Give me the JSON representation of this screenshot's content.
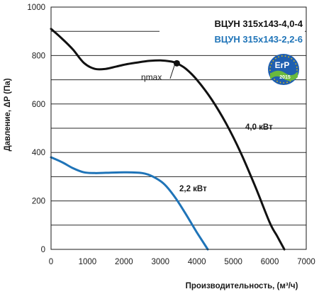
{
  "chart_data": {
    "type": "line",
    "xlabel": "Производительность, (м³/ч)",
    "ylabel": "Давление, ΔP (Па)",
    "xlim": [
      0,
      7000
    ],
    "ylim": [
      0,
      1000
    ],
    "x_ticks": [
      "0",
      "1000",
      "2000",
      "3000",
      "4000",
      "5000",
      "6000",
      "7000"
    ],
    "y_ticks": [
      "0",
      "200",
      "400",
      "600",
      "800",
      "1000"
    ],
    "grid": "horizontal",
    "legend_position": "top-right",
    "series": [
      {
        "name": "ВЦУН 315х143-4,0-4",
        "color": "#111111",
        "label": "4,0 кВт",
        "x": [
          0,
          300,
          600,
          900,
          1200,
          1500,
          1800,
          2100,
          2400,
          2700,
          3000,
          3300,
          3450,
          3700,
          4000,
          4400,
          4800,
          5200,
          5600,
          6000,
          6200,
          6400
        ],
        "y": [
          910,
          870,
          825,
          770,
          745,
          745,
          755,
          765,
          772,
          778,
          780,
          775,
          768,
          745,
          700,
          620,
          520,
          400,
          260,
          110,
          55,
          0
        ]
      },
      {
        "name": "ВЦУН 315х143-2,2-6",
        "color": "#1f74b8",
        "label": "2,2 кВт",
        "x": [
          0,
          300,
          600,
          900,
          1200,
          1500,
          2000,
          2500,
          2800,
          3100,
          3400,
          3700,
          4000,
          4300
        ],
        "y": [
          380,
          360,
          335,
          318,
          315,
          316,
          318,
          315,
          300,
          270,
          215,
          145,
          70,
          0
        ]
      }
    ],
    "annotations": [
      {
        "text": "ηmax",
        "x": 3450,
        "y": 768
      }
    ]
  },
  "badge": {
    "text": "ErP",
    "year": "2015"
  }
}
